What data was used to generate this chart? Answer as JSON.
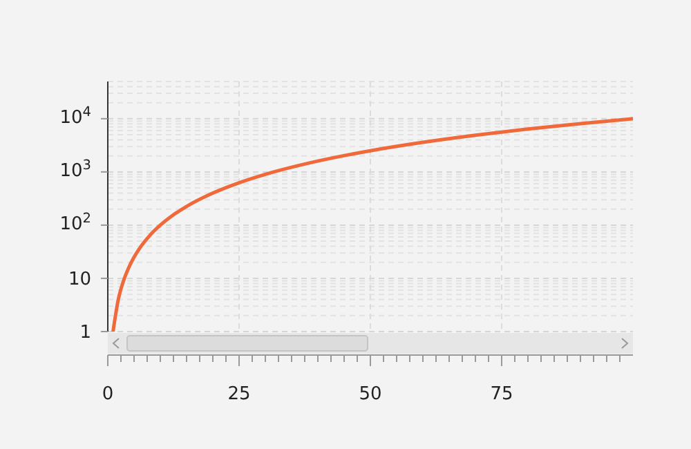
{
  "chart_data": {
    "type": "line",
    "log": "y",
    "grid": true,
    "marker": "none",
    "line_style": "solid",
    "x": [
      1,
      2,
      3,
      4,
      5,
      6,
      8,
      10,
      12,
      15,
      20,
      25,
      30,
      40,
      50,
      60,
      70,
      80,
      90,
      100
    ],
    "series": [
      {
        "color": "#f0693a",
        "values": [
          1,
          4,
          9,
          16,
          25,
          36,
          64,
          100,
          144,
          225,
          400,
          625,
          900,
          1600,
          2500,
          3600,
          4900,
          6400,
          8100,
          10000
        ]
      }
    ],
    "xlim": [
      0,
      100
    ],
    "ylim": [
      1,
      50000
    ],
    "xticks": [
      0,
      25,
      50,
      75
    ],
    "yticks": [
      1,
      10,
      {
        "value": 100,
        "label": "10$^{2}$"
      },
      {
        "value": 1000,
        "label": "10$^{3}$"
      },
      {
        "value": 10000,
        "label": "10$^{4}$"
      }
    ]
  }
}
